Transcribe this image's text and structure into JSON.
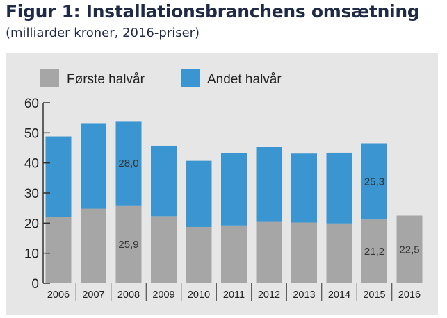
{
  "header": {
    "title": "Figur 1: Installationsbranchens omsætning",
    "subtitle": "(milliarder kroner, 2016-priser)"
  },
  "colors": {
    "first_half": "#a6a6a6",
    "second_half": "#3a95d0",
    "panel": "#e6e6e6",
    "title": "#1f2a44"
  },
  "chart_data": {
    "type": "bar",
    "stacked": true,
    "title": "Figur 1: Installationsbranchens omsætning",
    "subtitle": "(milliarder kroner, 2016-priser)",
    "xlabel": "",
    "ylabel": "",
    "ylim": [
      0,
      60
    ],
    "yticks": [
      0,
      10,
      20,
      30,
      40,
      50,
      60
    ],
    "legend_position": "top-left",
    "grid": false,
    "categories": [
      "2006",
      "2007",
      "2008",
      "2009",
      "2010",
      "2011",
      "2012",
      "2013",
      "2014",
      "2015",
      "2016"
    ],
    "series": [
      {
        "name": "Første halvår",
        "color": "#a6a6a6",
        "values": [
          22.0,
          24.8,
          25.9,
          22.3,
          18.7,
          19.2,
          20.4,
          20.2,
          19.9,
          21.2,
          22.5
        ]
      },
      {
        "name": "Andet halvår",
        "color": "#3a95d0",
        "values": [
          26.8,
          28.4,
          28.0,
          23.4,
          22.0,
          24.1,
          25.0,
          22.9,
          23.5,
          25.3,
          null
        ]
      }
    ],
    "data_labels": [
      {
        "category": "2008",
        "series": 1,
        "text": "28,0"
      },
      {
        "category": "2008",
        "series": 0,
        "text": "25,9"
      },
      {
        "category": "2015",
        "series": 1,
        "text": "25,3"
      },
      {
        "category": "2015",
        "series": 0,
        "text": "21,2"
      },
      {
        "category": "2016",
        "series": 0,
        "text": "22,5"
      }
    ]
  }
}
